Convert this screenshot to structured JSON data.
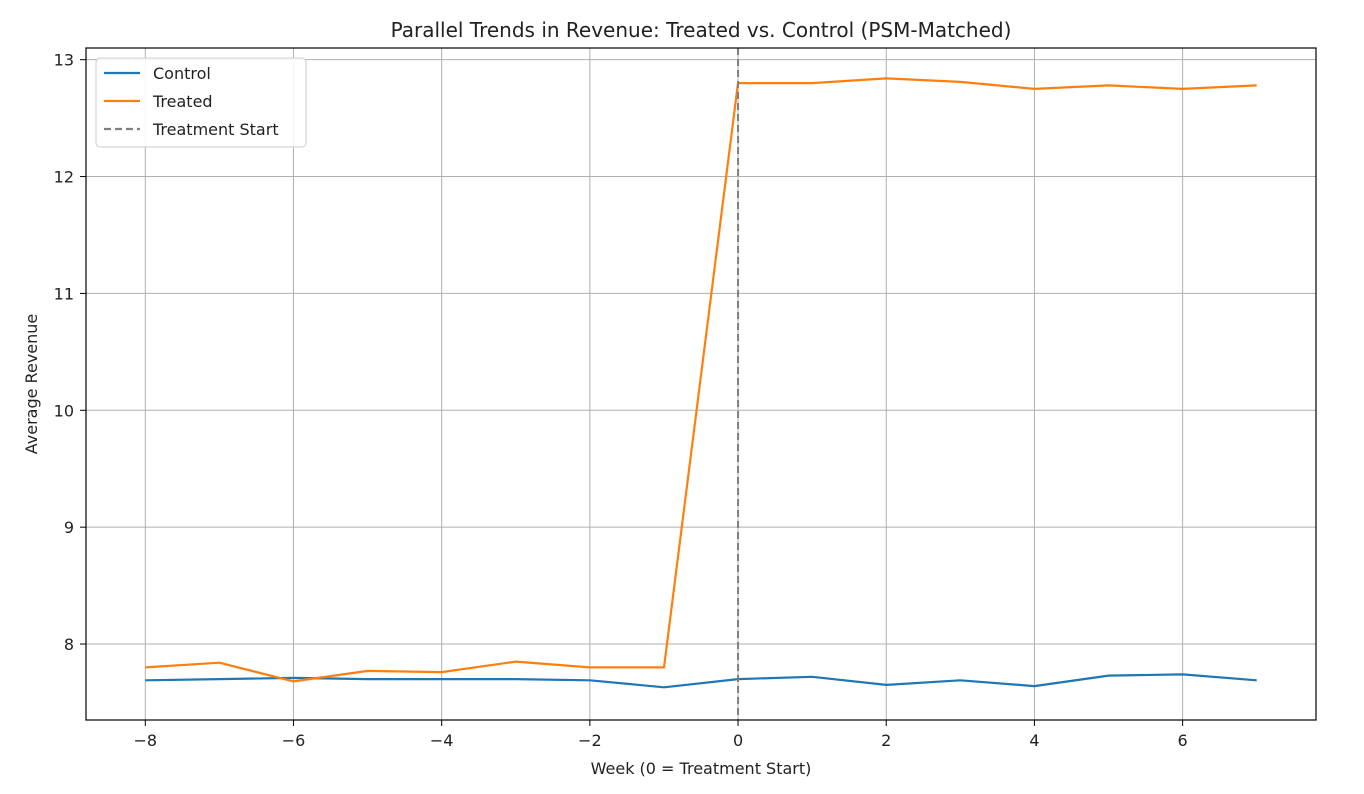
{
  "chart_data": {
    "type": "line",
    "title": "Parallel Trends in Revenue: Treated vs. Control (PSM-Matched)",
    "xlabel": "Week (0 = Treatment Start)",
    "ylabel": "Average Revenue",
    "xlim": [
      -8.8,
      7.8
    ],
    "ylim": [
      7.35,
      13.1
    ],
    "xticks": [
      -8,
      -6,
      -4,
      -2,
      0,
      2,
      4,
      6
    ],
    "xtick_labels": [
      "−8",
      "−6",
      "−4",
      "−2",
      "0",
      "2",
      "4",
      "6"
    ],
    "yticks": [
      8,
      9,
      10,
      11,
      12,
      13
    ],
    "ytick_labels": [
      "8",
      "9",
      "10",
      "11",
      "12",
      "13"
    ],
    "grid": true,
    "legend_position": "top-left",
    "x": [
      -8,
      -7,
      -6,
      -5,
      -4,
      -3,
      -2,
      -1,
      0,
      1,
      2,
      3,
      4,
      5,
      6,
      7
    ],
    "series": [
      {
        "name": "Control",
        "color": "#1f77b4",
        "values": [
          7.69,
          7.7,
          7.71,
          7.7,
          7.7,
          7.7,
          7.69,
          7.63,
          7.7,
          7.72,
          7.65,
          7.69,
          7.64,
          7.73,
          7.74,
          7.69
        ]
      },
      {
        "name": "Treated",
        "color": "#ff7f0e",
        "values": [
          7.8,
          7.84,
          7.68,
          7.77,
          7.76,
          7.85,
          7.8,
          7.8,
          12.8,
          12.8,
          12.84,
          12.81,
          12.75,
          12.78,
          12.75,
          12.78
        ]
      }
    ],
    "vline": {
      "x": 0,
      "name": "Treatment Start",
      "color": "#7f7f7f",
      "style": "dashed"
    }
  }
}
